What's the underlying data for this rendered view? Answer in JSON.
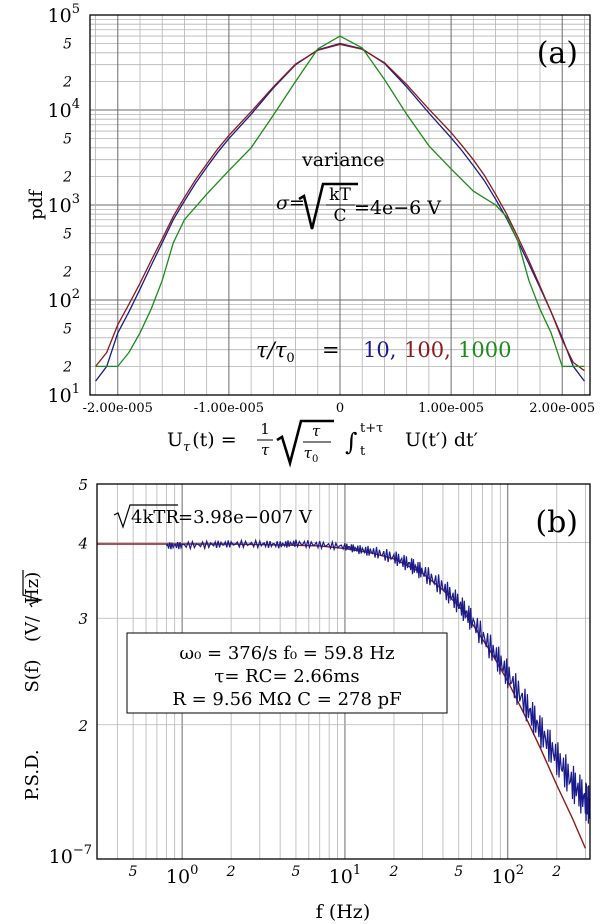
{
  "chart_data": [
    {
      "type": "line",
      "panel_label": "(a)",
      "ylabel": "pdf",
      "xlabel_prefix": "U",
      "xlabel_sub": "τ",
      "xlabel_eq": "(t) =",
      "xlabel_frac_num": "1",
      "xlabel_frac_den": "τ",
      "xlabel_sqrt_num": "τ",
      "xlabel_sqrt_den": "τ",
      "xlabel_sqrt_den_sub": "0",
      "xlabel_int_lower": "t",
      "xlabel_int_upper": "t+τ",
      "xlabel_integrand": "U(t′) dt′",
      "yscale": "log",
      "ylim": [
        10,
        100000
      ],
      "xlim": [
        -2.25e-05,
        2.25e-05
      ],
      "xticks": [
        "-2.00e-005",
        "-1.00e-005",
        "0",
        "1.00e-005",
        "2.00e-005"
      ],
      "xtick_values": [
        -2e-05,
        -1e-05,
        0,
        1e-05,
        2e-05
      ],
      "y_decade_labels": [
        {
          "value": 10,
          "mant": "10",
          "exp": "1"
        },
        {
          "value": 100,
          "mant": "10",
          "exp": "2"
        },
        {
          "value": 1000,
          "mant": "10",
          "exp": "3"
        },
        {
          "value": 10000,
          "mant": "10",
          "exp": "4"
        },
        {
          "value": 100000,
          "mant": "10",
          "exp": "5"
        }
      ],
      "y_minor_labels": [
        {
          "value": 20,
          "label": "2"
        },
        {
          "value": 50,
          "label": "5"
        },
        {
          "value": 200,
          "label": "2"
        },
        {
          "value": 500,
          "label": "5"
        },
        {
          "value": 2000,
          "label": "2"
        },
        {
          "value": 5000,
          "label": "5"
        },
        {
          "value": 20000,
          "label": "2"
        },
        {
          "value": 50000,
          "label": "5"
        }
      ],
      "annotation": {
        "title": "variance",
        "sigma": "σ=",
        "frac_num": "kT",
        "frac_den": "C",
        "value": "=4e−6 V"
      },
      "legend_prefix": "τ/τ",
      "legend_prefix_sub": "0",
      "legend_eq": "=",
      "series": [
        {
          "name": "10,",
          "color": "#1a1a8c",
          "x": [
            -2.2e-05,
            -2.1e-05,
            -2e-05,
            -1.9e-05,
            -1.8e-05,
            -1.7e-05,
            -1.6e-05,
            -1.5e-05,
            -1.4e-05,
            -1.3e-05,
            -1.2e-05,
            -1.1e-05,
            -1e-05,
            -8e-06,
            -6e-06,
            -4e-06,
            -2e-06,
            0,
            2e-06,
            4e-06,
            6e-06,
            8e-06,
            1e-05,
            1.1e-05,
            1.2e-05,
            1.3e-05,
            1.4e-05,
            1.5e-05,
            1.6e-05,
            1.7e-05,
            1.8e-05,
            1.9e-05,
            2e-05,
            2.1e-05,
            2.2e-05
          ],
          "y": [
            14,
            20,
            45,
            75,
            130,
            230,
            400,
            700,
            1100,
            1700,
            2500,
            3600,
            5000,
            9000,
            17000,
            30000,
            43000,
            50000,
            44000,
            31000,
            17500,
            9300,
            5100,
            3700,
            2600,
            1800,
            1150,
            720,
            420,
            240,
            135,
            75,
            40,
            20,
            14
          ]
        },
        {
          "name": "100,",
          "color": "#8b1a1a",
          "x": [
            -2.2e-05,
            -2.1e-05,
            -2e-05,
            -1.9e-05,
            -1.8e-05,
            -1.7e-05,
            -1.6e-05,
            -1.5e-05,
            -1.4e-05,
            -1.3e-05,
            -1.2e-05,
            -1.1e-05,
            -1e-05,
            -8e-06,
            -6e-06,
            -4e-06,
            -2e-06,
            0,
            2e-06,
            4e-06,
            6e-06,
            8e-06,
            1e-05,
            1.1e-05,
            1.2e-05,
            1.3e-05,
            1.4e-05,
            1.5e-05,
            1.6e-05,
            1.7e-05,
            1.8e-05,
            1.9e-05,
            2e-05,
            2.1e-05,
            2.2e-05
          ],
          "y": [
            20,
            28,
            55,
            90,
            150,
            260,
            440,
            760,
            1200,
            1850,
            2700,
            3900,
            5400,
            9600,
            17500,
            30500,
            42500,
            49000,
            43500,
            31500,
            18500,
            10200,
            5800,
            4200,
            3000,
            2050,
            1300,
            800,
            460,
            260,
            140,
            75,
            38,
            22,
            18
          ]
        },
        {
          "name": "1000",
          "color": "#1a8c1a",
          "x": [
            -2.2e-05,
            -2e-05,
            -1.9e-05,
            -1.8e-05,
            -1.7e-05,
            -1.6e-05,
            -1.5e-05,
            -1.4e-05,
            -1.2e-05,
            -1e-05,
            -8e-06,
            -6e-06,
            -4e-06,
            -2e-06,
            0,
            2e-06,
            4e-06,
            6e-06,
            8e-06,
            1e-05,
            1.2e-05,
            1.4e-05,
            1.5e-05,
            1.6e-05,
            1.7e-05,
            1.8e-05,
            1.9e-05,
            2e-05,
            2.2e-05
          ],
          "y": [
            20,
            20,
            28,
            45,
            80,
            160,
            400,
            700,
            1300,
            2300,
            4000,
            8800,
            20000,
            44000,
            60000,
            45000,
            21000,
            9000,
            4200,
            2400,
            1400,
            1000,
            750,
            420,
            160,
            80,
            45,
            20,
            20
          ]
        }
      ]
    },
    {
      "type": "line",
      "panel_label": "(b)",
      "ylabel_psd": "P.S.D.",
      "ylabel_sf": "S(f)",
      "ylabel_unit_pre": "(V/",
      "ylabel_unit_rad": "Hz",
      "ylabel_unit_post": ")",
      "xlabel": "f (Hz)",
      "xscale": "log",
      "yscale": "log",
      "xlim": [
        0.3,
        320
      ],
      "ylim": [
        1.2,
        5
      ],
      "x_decade_labels": [
        {
          "value": 1,
          "mant": "10",
          "exp": "0"
        },
        {
          "value": 10,
          "mant": "10",
          "exp": "1"
        },
        {
          "value": 100,
          "mant": "10",
          "exp": "2"
        }
      ],
      "x_minor_labels": [
        {
          "value": 0.5,
          "label": "5"
        },
        {
          "value": 2,
          "label": "2"
        },
        {
          "value": 5,
          "label": "5"
        },
        {
          "value": 20,
          "label": "2"
        },
        {
          "value": 50,
          "label": "5"
        },
        {
          "value": 200,
          "label": "2"
        }
      ],
      "y_tick_labels": [
        {
          "value": 5,
          "label": "5"
        },
        {
          "value": 4,
          "label": "4"
        },
        {
          "value": 3,
          "label": "3"
        },
        {
          "value": 2,
          "label": "2"
        }
      ],
      "y_bottom_label": {
        "mant": "10",
        "exp": "−7"
      },
      "noise_label": {
        "rad": "4kTR",
        "value": "=3.98e−007 V"
      },
      "params": [
        "ω₀ = 376/s   f₀ = 59.8 Hz",
        "τ= RC= 2.66ms",
        "R = 9.56 MΩ   C = 278 pF"
      ],
      "series": [
        {
          "name": "",
          "color": "#8b1a1a",
          "x": [
            0.3,
            0.5,
            1,
            2,
            3,
            5,
            7,
            10,
            15,
            20,
            30,
            40,
            50,
            60,
            80,
            100,
            130,
            160,
            200,
            250,
            300
          ],
          "y": [
            3.98,
            3.98,
            3.98,
            3.98,
            3.97,
            3.96,
            3.95,
            3.91,
            3.84,
            3.76,
            3.56,
            3.34,
            3.14,
            2.95,
            2.62,
            2.36,
            2.05,
            1.82,
            1.59,
            1.4,
            1.25
          ]
        },
        {
          "name": "",
          "color": "#1a1a8c",
          "x": [
            0.8,
            1,
            1.5,
            2,
            3,
            4,
            5,
            7,
            10,
            12,
            15,
            20,
            25,
            30,
            40,
            50,
            60,
            80,
            100,
            130,
            160,
            200,
            250,
            300,
            320
          ],
          "y": [
            3.95,
            3.96,
            3.97,
            3.98,
            3.98,
            3.97,
            3.99,
            3.97,
            3.94,
            3.9,
            3.86,
            3.78,
            3.68,
            3.58,
            3.37,
            3.17,
            2.98,
            2.66,
            2.42,
            2.15,
            1.95,
            1.76,
            1.6,
            1.5,
            1.47
          ]
        }
      ]
    }
  ]
}
